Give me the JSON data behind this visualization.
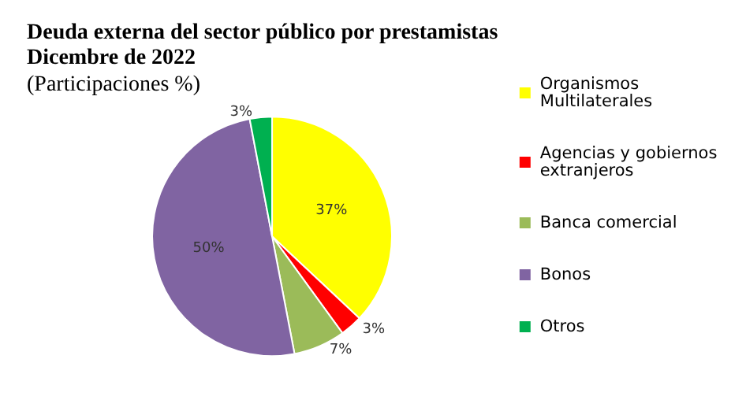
{
  "chart_data": {
    "type": "pie",
    "title": "Deuda externa del sector público por prestamistas Dicembre de 2022",
    "subtitle": "(Participaciones %)",
    "categories": [
      "Organismos Multilaterales",
      "Agencias y gobiernos extranjeros",
      "Banca comercial",
      "Bonos",
      "Otros"
    ],
    "values": [
      37,
      3,
      7,
      50,
      3
    ],
    "colors": [
      "#ffff00",
      "#ff0000",
      "#9bbb59",
      "#8064a2",
      "#00b050"
    ],
    "value_labels": [
      "37%",
      "3%",
      "7%",
      "50%",
      "3%"
    ],
    "legend": "right"
  }
}
